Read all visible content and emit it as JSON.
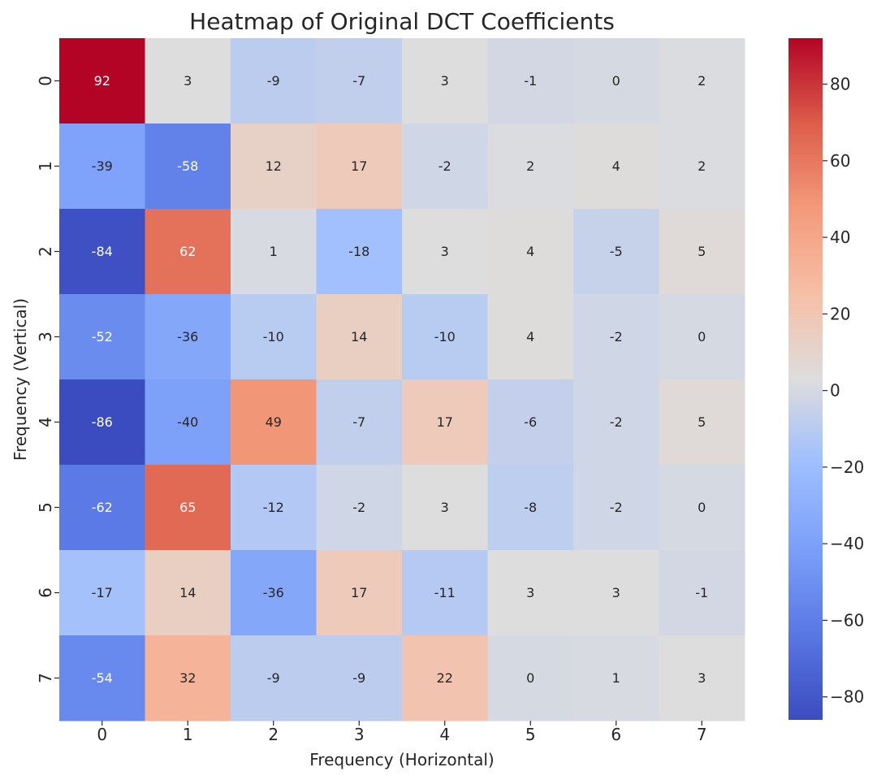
{
  "chart_data": {
    "type": "heatmap",
    "title": "Heatmap of Original DCT Coefficients",
    "xlabel": "Frequency (Horizontal)",
    "ylabel": "Frequency (Vertical)",
    "x_categories": [
      "0",
      "1",
      "2",
      "3",
      "4",
      "5",
      "6",
      "7"
    ],
    "y_categories": [
      "0",
      "1",
      "2",
      "3",
      "4",
      "5",
      "6",
      "7"
    ],
    "values": [
      [
        92,
        3,
        -9,
        -7,
        3,
        -1,
        0,
        2
      ],
      [
        -39,
        -58,
        12,
        17,
        -2,
        2,
        4,
        2
      ],
      [
        -84,
        62,
        1,
        -18,
        3,
        4,
        -5,
        5
      ],
      [
        -52,
        -36,
        -10,
        14,
        -10,
        4,
        -2,
        0
      ],
      [
        -86,
        -40,
        49,
        -7,
        17,
        -6,
        -2,
        5
      ],
      [
        -62,
        65,
        -12,
        -2,
        3,
        -8,
        -2,
        0
      ],
      [
        -17,
        14,
        -36,
        17,
        -11,
        3,
        3,
        -1
      ],
      [
        -54,
        32,
        -9,
        -9,
        22,
        0,
        1,
        3
      ]
    ],
    "colormap": "coolwarm",
    "vmin": -86,
    "vmax": 92,
    "colorbar_ticks": [
      80,
      60,
      40,
      20,
      0,
      -20,
      -40,
      -60,
      -80
    ],
    "colorbar_tick_labels": [
      "80",
      "60",
      "40",
      "20",
      "0",
      "−20",
      "−40",
      "−60",
      "−80"
    ],
    "annotate": true
  }
}
